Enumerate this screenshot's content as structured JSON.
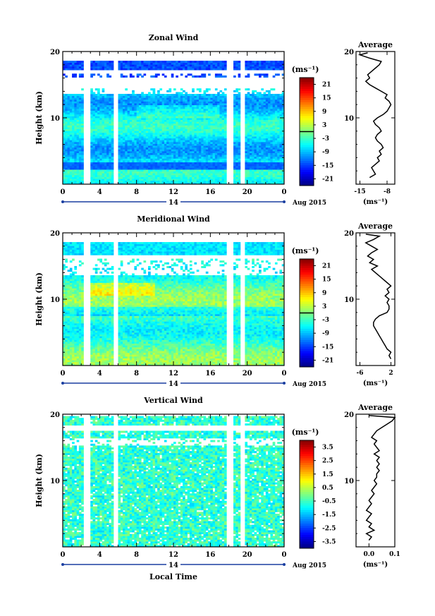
{
  "chart_data": [
    {
      "type": "heatmap",
      "title": "Zonal Wind",
      "ylabel": "Height (km)",
      "ylim": [
        0,
        20
      ],
      "y_ticks": [
        10,
        20
      ],
      "xlim": [
        0,
        24
      ],
      "x_tick_labels": [
        "0",
        "4",
        "8",
        "12",
        "16",
        "20",
        "0"
      ],
      "date_axis": {
        "day_label": "14",
        "month_year": "Aug 2015"
      },
      "colorbar": {
        "unit": "(ms⁻¹)",
        "tick_labels": [
          "21",
          "15",
          "9",
          "3",
          "-3",
          "-9",
          "-15",
          "-21"
        ],
        "range": [
          -24,
          24
        ]
      },
      "data_gaps_hours": [
        [
          2.3,
          2.9
        ],
        [
          5.6,
          6.0
        ],
        [
          17.8,
          18.6
        ],
        [
          19.3,
          19.7
        ]
      ],
      "profile": {
        "title": "Average",
        "xlabel": "(ms⁻¹)",
        "x_tick_labels": [
          "-15",
          "-8"
        ],
        "xlim": [
          -16,
          -6
        ],
        "y_ticks": [
          10,
          20
        ],
        "points": [
          [
            -12.5,
            1.0
          ],
          [
            -11.0,
            1.5
          ],
          [
            -11.5,
            2.0
          ],
          [
            -12.0,
            2.5
          ],
          [
            -11.0,
            3.0
          ],
          [
            -10.0,
            3.5
          ],
          [
            -10.5,
            4.0
          ],
          [
            -9.5,
            4.5
          ],
          [
            -10.0,
            5.0
          ],
          [
            -9.0,
            5.5
          ],
          [
            -9.5,
            6.0
          ],
          [
            -10.5,
            6.5
          ],
          [
            -11.0,
            7.0
          ],
          [
            -10.5,
            7.5
          ],
          [
            -9.5,
            8.0
          ],
          [
            -10.0,
            8.5
          ],
          [
            -11.0,
            9.0
          ],
          [
            -11.5,
            9.5
          ],
          [
            -10.5,
            10.0
          ],
          [
            -9.0,
            10.5
          ],
          [
            -8.0,
            11.0
          ],
          [
            -7.5,
            11.5
          ],
          [
            -7.0,
            12.0
          ],
          [
            -7.5,
            12.5
          ],
          [
            -8.5,
            13.0
          ],
          [
            -8.0,
            13.5
          ],
          [
            -9.5,
            14.0
          ],
          [
            -11.0,
            14.5
          ],
          [
            -12.5,
            15.0
          ],
          [
            -13.5,
            15.5
          ],
          [
            -12.5,
            16.0
          ],
          [
            -13.0,
            16.5
          ],
          [
            -12.0,
            17.0
          ],
          [
            -11.0,
            17.5
          ],
          [
            -10.0,
            18.0
          ],
          [
            -9.5,
            18.5
          ],
          [
            -12.5,
            19.0
          ],
          [
            -15.0,
            19.5
          ],
          [
            -13.0,
            19.8
          ]
        ]
      }
    },
    {
      "type": "heatmap",
      "title": "Meridional Wind",
      "ylabel": "Height (km)",
      "ylim": [
        0,
        20
      ],
      "y_ticks": [
        10,
        20
      ],
      "xlim": [
        0,
        24
      ],
      "x_tick_labels": [
        "0",
        "4",
        "8",
        "12",
        "16",
        "20",
        "0"
      ],
      "date_axis": {
        "day_label": "14",
        "month_year": "Aug 2015"
      },
      "colorbar": {
        "unit": "(ms⁻¹)",
        "tick_labels": [
          "21",
          "15",
          "9",
          "3",
          "-3",
          "-9",
          "-15",
          "-21"
        ],
        "range": [
          -24,
          24
        ]
      },
      "data_gaps_hours": [
        [
          2.3,
          2.9
        ],
        [
          5.6,
          6.0
        ],
        [
          17.8,
          18.6
        ],
        [
          19.3,
          19.7
        ]
      ],
      "profile": {
        "title": "Average",
        "xlabel": "(ms⁻¹)",
        "x_tick_labels": [
          "-6",
          "2"
        ],
        "xlim": [
          -7,
          3
        ],
        "y_ticks": [
          10,
          20
        ],
        "points": [
          [
            2.0,
            1.0
          ],
          [
            1.5,
            1.5
          ],
          [
            2.0,
            2.0
          ],
          [
            1.0,
            2.5
          ],
          [
            0.5,
            3.0
          ],
          [
            0.0,
            3.5
          ],
          [
            -0.5,
            4.0
          ],
          [
            -1.0,
            4.5
          ],
          [
            -1.5,
            5.0
          ],
          [
            -2.0,
            5.5
          ],
          [
            -2.5,
            6.0
          ],
          [
            -2.5,
            6.5
          ],
          [
            -2.0,
            7.0
          ],
          [
            -1.0,
            7.5
          ],
          [
            1.0,
            8.0
          ],
          [
            1.5,
            8.5
          ],
          [
            1.5,
            9.0
          ],
          [
            1.0,
            9.5
          ],
          [
            1.5,
            10.0
          ],
          [
            0.5,
            10.5
          ],
          [
            1.5,
            11.0
          ],
          [
            1.0,
            11.5
          ],
          [
            2.0,
            12.0
          ],
          [
            1.0,
            12.5
          ],
          [
            0.0,
            13.0
          ],
          [
            -1.0,
            13.5
          ],
          [
            -2.0,
            14.0
          ],
          [
            -3.0,
            14.5
          ],
          [
            -1.5,
            15.0
          ],
          [
            -3.5,
            15.5
          ],
          [
            -2.5,
            16.0
          ],
          [
            -4.0,
            16.5
          ],
          [
            -3.0,
            17.0
          ],
          [
            -1.5,
            17.5
          ],
          [
            -3.0,
            18.0
          ],
          [
            -4.5,
            18.5
          ],
          [
            -2.5,
            19.0
          ],
          [
            -1.0,
            19.5
          ],
          [
            -4.5,
            19.8
          ]
        ]
      }
    },
    {
      "type": "heatmap",
      "title": "Vertical Wind",
      "ylabel": "Height (km)",
      "xlabel": "Local Time",
      "ylim": [
        0,
        20
      ],
      "y_ticks": [
        10,
        20
      ],
      "xlim": [
        0,
        24
      ],
      "x_tick_labels": [
        "0",
        "4",
        "8",
        "12",
        "16",
        "20",
        "0"
      ],
      "date_axis": {
        "day_label": "14",
        "month_year": "Aug 2015"
      },
      "colorbar": {
        "unit": "(ms⁻¹)",
        "tick_labels": [
          "3.5",
          "2.5",
          "1.5",
          "0.5",
          "-0.5",
          "-1.5",
          "-2.5",
          "-3.5"
        ],
        "range": [
          -4,
          4
        ]
      },
      "data_gaps_hours": [
        [
          2.3,
          2.9
        ],
        [
          5.6,
          6.0
        ],
        [
          17.8,
          18.6
        ],
        [
          19.3,
          19.7
        ]
      ],
      "profile": {
        "title": "Average",
        "xlabel": "(ms⁻¹)",
        "x_tick_labels": [
          "0.0",
          "0.1"
        ],
        "xlim": [
          -0.05,
          0.1
        ],
        "y_ticks": [
          10,
          20
        ],
        "points": [
          [
            0.0,
            1.0
          ],
          [
            0.01,
            1.5
          ],
          [
            -0.01,
            2.0
          ],
          [
            0.02,
            2.5
          ],
          [
            0.0,
            3.0
          ],
          [
            0.01,
            3.5
          ],
          [
            -0.01,
            4.0
          ],
          [
            0.0,
            4.5
          ],
          [
            0.01,
            5.0
          ],
          [
            -0.01,
            5.5
          ],
          [
            0.0,
            6.0
          ],
          [
            0.01,
            6.5
          ],
          [
            0.0,
            7.0
          ],
          [
            0.01,
            7.5
          ],
          [
            0.02,
            8.0
          ],
          [
            0.01,
            8.5
          ],
          [
            0.02,
            9.0
          ],
          [
            0.03,
            9.5
          ],
          [
            0.02,
            10.0
          ],
          [
            0.03,
            10.5
          ],
          [
            0.03,
            11.0
          ],
          [
            0.04,
            11.5
          ],
          [
            0.03,
            12.0
          ],
          [
            0.04,
            12.5
          ],
          [
            0.03,
            13.0
          ],
          [
            0.04,
            13.5
          ],
          [
            0.02,
            14.0
          ],
          [
            0.04,
            14.5
          ],
          [
            0.03,
            15.0
          ],
          [
            0.02,
            15.5
          ],
          [
            0.03,
            16.0
          ],
          [
            0.01,
            16.5
          ],
          [
            0.02,
            17.0
          ],
          [
            0.03,
            17.5
          ],
          [
            0.05,
            18.0
          ],
          [
            0.07,
            18.5
          ],
          [
            0.09,
            19.0
          ],
          [
            0.1,
            19.5
          ],
          [
            0.0,
            19.8
          ]
        ]
      }
    }
  ]
}
